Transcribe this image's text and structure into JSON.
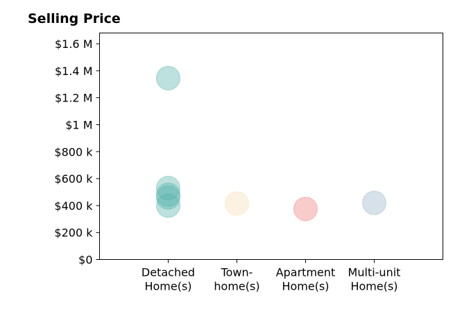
{
  "chart_data": {
    "type": "scatter",
    "title": "Selling Price",
    "xlabel": "",
    "ylabel": "",
    "categories": [
      [
        "Detached",
        "Home(s)"
      ],
      [
        "Town-",
        "home(s)"
      ],
      [
        "Apartment",
        "Home(s)"
      ],
      [
        "Multi-unit",
        "Home(s)"
      ]
    ],
    "xlim": [
      -1,
      4
    ],
    "ylim": [
      0,
      1680000
    ],
    "y_ticks": [
      {
        "value": 0,
        "label": "$0"
      },
      {
        "value": 200000,
        "label": "$200 k"
      },
      {
        "value": 400000,
        "label": "$400 k"
      },
      {
        "value": 600000,
        "label": "$600 k"
      },
      {
        "value": 800000,
        "label": "$800 k"
      },
      {
        "value": 1000000,
        "label": "$1 M"
      },
      {
        "value": 1200000,
        "label": "$1.2 M"
      },
      {
        "value": 1400000,
        "label": "$1.4 M"
      },
      {
        "value": 1600000,
        "label": "$1.6 M"
      }
    ],
    "colors": [
      "#5ab4ac",
      "#f5deb3",
      "#f08080",
      "#9ab5c9"
    ],
    "points": [
      {
        "category": 0,
        "y": 1345000
      },
      {
        "category": 0,
        "y": 530000
      },
      {
        "category": 0,
        "y": 480000
      },
      {
        "category": 0,
        "y": 460000
      },
      {
        "category": 0,
        "y": 400000
      },
      {
        "category": 1,
        "y": 415000
      },
      {
        "category": 2,
        "y": 375000
      },
      {
        "category": 3,
        "y": 420000
      }
    ],
    "grid": false,
    "legend": "none"
  }
}
